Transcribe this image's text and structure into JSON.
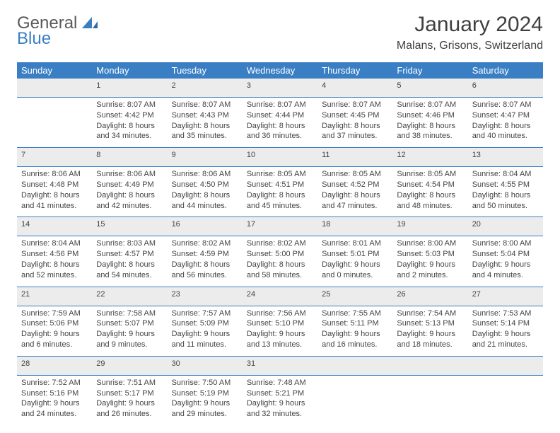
{
  "brand": {
    "word1": "General",
    "word2": "Blue",
    "color_general": "#5a5a5a",
    "color_blue": "#3a7fc4"
  },
  "title": "January 2024",
  "location": "Malans, Grisons, Switzerland",
  "colors": {
    "header_bg": "#3a7fc4",
    "header_text": "#ffffff",
    "daynum_bg": "#ececec",
    "border": "#3a7fc4",
    "body_text": "#444444",
    "page_bg": "#ffffff"
  },
  "day_headers": [
    "Sunday",
    "Monday",
    "Tuesday",
    "Wednesday",
    "Thursday",
    "Friday",
    "Saturday"
  ],
  "weeks": [
    {
      "nums": [
        "",
        "1",
        "2",
        "3",
        "4",
        "5",
        "6"
      ],
      "details": [
        "",
        "Sunrise: 8:07 AM\nSunset: 4:42 PM\nDaylight: 8 hours and 34 minutes.",
        "Sunrise: 8:07 AM\nSunset: 4:43 PM\nDaylight: 8 hours and 35 minutes.",
        "Sunrise: 8:07 AM\nSunset: 4:44 PM\nDaylight: 8 hours and 36 minutes.",
        "Sunrise: 8:07 AM\nSunset: 4:45 PM\nDaylight: 8 hours and 37 minutes.",
        "Sunrise: 8:07 AM\nSunset: 4:46 PM\nDaylight: 8 hours and 38 minutes.",
        "Sunrise: 8:07 AM\nSunset: 4:47 PM\nDaylight: 8 hours and 40 minutes."
      ]
    },
    {
      "nums": [
        "7",
        "8",
        "9",
        "10",
        "11",
        "12",
        "13"
      ],
      "details": [
        "Sunrise: 8:06 AM\nSunset: 4:48 PM\nDaylight: 8 hours and 41 minutes.",
        "Sunrise: 8:06 AM\nSunset: 4:49 PM\nDaylight: 8 hours and 42 minutes.",
        "Sunrise: 8:06 AM\nSunset: 4:50 PM\nDaylight: 8 hours and 44 minutes.",
        "Sunrise: 8:05 AM\nSunset: 4:51 PM\nDaylight: 8 hours and 45 minutes.",
        "Sunrise: 8:05 AM\nSunset: 4:52 PM\nDaylight: 8 hours and 47 minutes.",
        "Sunrise: 8:05 AM\nSunset: 4:54 PM\nDaylight: 8 hours and 48 minutes.",
        "Sunrise: 8:04 AM\nSunset: 4:55 PM\nDaylight: 8 hours and 50 minutes."
      ]
    },
    {
      "nums": [
        "14",
        "15",
        "16",
        "17",
        "18",
        "19",
        "20"
      ],
      "details": [
        "Sunrise: 8:04 AM\nSunset: 4:56 PM\nDaylight: 8 hours and 52 minutes.",
        "Sunrise: 8:03 AM\nSunset: 4:57 PM\nDaylight: 8 hours and 54 minutes.",
        "Sunrise: 8:02 AM\nSunset: 4:59 PM\nDaylight: 8 hours and 56 minutes.",
        "Sunrise: 8:02 AM\nSunset: 5:00 PM\nDaylight: 8 hours and 58 minutes.",
        "Sunrise: 8:01 AM\nSunset: 5:01 PM\nDaylight: 9 hours and 0 minutes.",
        "Sunrise: 8:00 AM\nSunset: 5:03 PM\nDaylight: 9 hours and 2 minutes.",
        "Sunrise: 8:00 AM\nSunset: 5:04 PM\nDaylight: 9 hours and 4 minutes."
      ]
    },
    {
      "nums": [
        "21",
        "22",
        "23",
        "24",
        "25",
        "26",
        "27"
      ],
      "details": [
        "Sunrise: 7:59 AM\nSunset: 5:06 PM\nDaylight: 9 hours and 6 minutes.",
        "Sunrise: 7:58 AM\nSunset: 5:07 PM\nDaylight: 9 hours and 9 minutes.",
        "Sunrise: 7:57 AM\nSunset: 5:09 PM\nDaylight: 9 hours and 11 minutes.",
        "Sunrise: 7:56 AM\nSunset: 5:10 PM\nDaylight: 9 hours and 13 minutes.",
        "Sunrise: 7:55 AM\nSunset: 5:11 PM\nDaylight: 9 hours and 16 minutes.",
        "Sunrise: 7:54 AM\nSunset: 5:13 PM\nDaylight: 9 hours and 18 minutes.",
        "Sunrise: 7:53 AM\nSunset: 5:14 PM\nDaylight: 9 hours and 21 minutes."
      ]
    },
    {
      "nums": [
        "28",
        "29",
        "30",
        "31",
        "",
        "",
        ""
      ],
      "details": [
        "Sunrise: 7:52 AM\nSunset: 5:16 PM\nDaylight: 9 hours and 24 minutes.",
        "Sunrise: 7:51 AM\nSunset: 5:17 PM\nDaylight: 9 hours and 26 minutes.",
        "Sunrise: 7:50 AM\nSunset: 5:19 PM\nDaylight: 9 hours and 29 minutes.",
        "Sunrise: 7:48 AM\nSunset: 5:21 PM\nDaylight: 9 hours and 32 minutes.",
        "",
        "",
        ""
      ]
    }
  ]
}
